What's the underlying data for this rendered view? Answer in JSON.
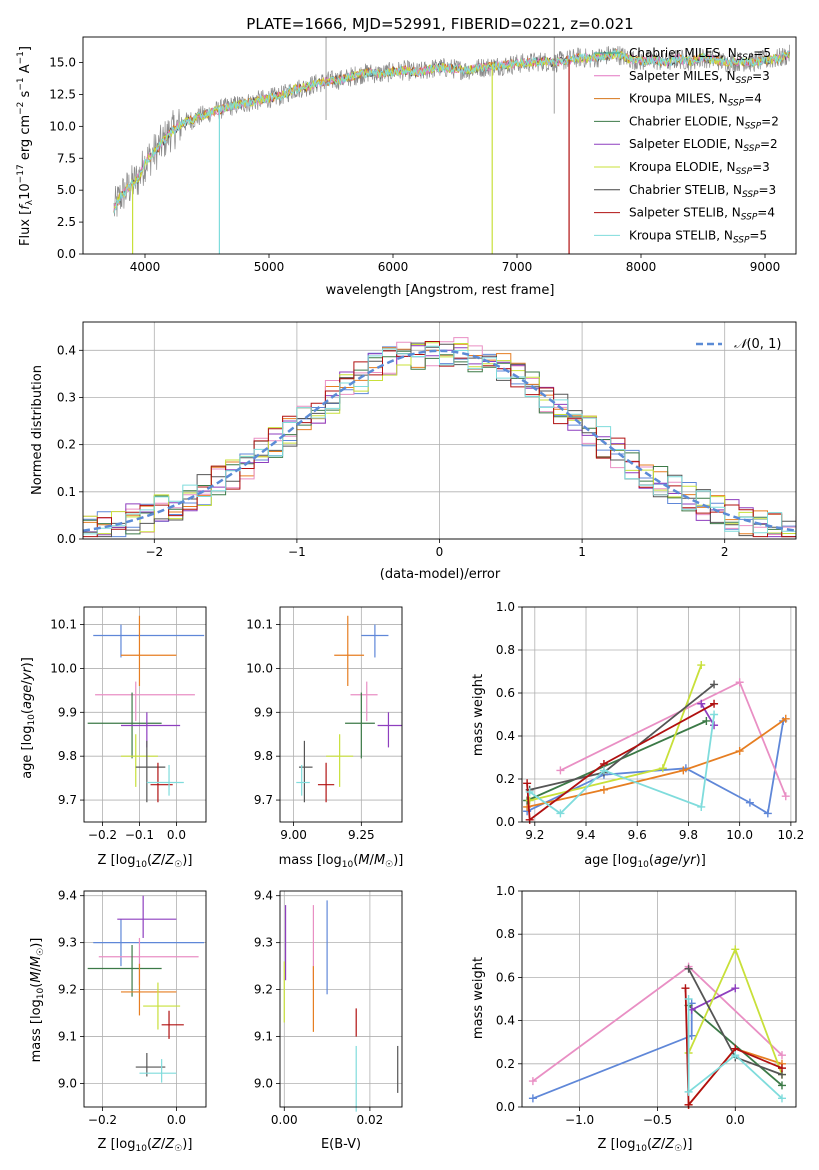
{
  "chart_data": [
    {
      "id": "spectrum",
      "type": "line",
      "title": "PLATE=1666, MJD=52991, FIBERID=0221, z=0.021",
      "xlabel": "wavelength [Angstrom, rest frame]",
      "ylabel": "Flux [fλ 10⁻¹⁷ erg cm⁻² s⁻¹ A⁻¹]",
      "xlim": [
        3500,
        9250
      ],
      "ylim": [
        0,
        17
      ],
      "xticks": [
        4000,
        5000,
        6000,
        7000,
        8000,
        9000
      ],
      "yticks": [
        0.0,
        2.5,
        5.0,
        7.5,
        10.0,
        12.5,
        15.0
      ],
      "grid": false,
      "legend_position": "top-right",
      "legend": [
        {
          "label": "Chabrier MILES, N",
          "sub": "SSP",
          "suffix": "=5",
          "color": "#2a9d8f"
        },
        {
          "label": "Salpeter MILES, N",
          "sub": "SSP",
          "suffix": "=3",
          "color": "#e377c2"
        },
        {
          "label": "Kroupa MILES, N",
          "sub": "SSP",
          "suffix": "=4",
          "color": "#d6741a"
        },
        {
          "label": "Chabrier ELODIE, N",
          "sub": "SSP",
          "suffix": "=2",
          "color": "#3c7a47"
        },
        {
          "label": "Salpeter ELODIE, N",
          "sub": "SSP",
          "suffix": "=2",
          "color": "#8e3fbf"
        },
        {
          "label": "Kroupa ELODIE, N",
          "sub": "SSP",
          "suffix": "=3",
          "color": "#c8e03a"
        },
        {
          "label": "Chabrier STELIB, N",
          "sub": "SSP",
          "suffix": "=3",
          "color": "#444444"
        },
        {
          "label": "Salpeter STELIB, N",
          "sub": "SSP",
          "suffix": "=4",
          "color": "#b01010"
        },
        {
          "label": "Kroupa STELIB, N",
          "sub": "SSP",
          "suffix": "=5",
          "color": "#7fdcdc"
        }
      ],
      "series": [
        {
          "x": [
            3750,
            3800,
            3850,
            3900,
            3950,
            4000,
            4100,
            4200,
            4300,
            4400,
            4500,
            4600,
            4700,
            4800,
            4900,
            5000,
            5100,
            5200,
            5300,
            5400,
            5500,
            5600,
            5700,
            5800,
            5900,
            6000,
            6100,
            6200,
            6300,
            6400,
            6500,
            6600,
            6700,
            6800,
            6900,
            7000,
            7100,
            7200,
            7300,
            7400,
            7500,
            7600,
            7700,
            7800,
            7900,
            8000,
            8100,
            8200,
            8300,
            8400,
            8500,
            8600,
            8700,
            8800,
            8900,
            9000,
            9100,
            9200
          ],
          "y": [
            3.5,
            4.5,
            5.0,
            5.5,
            6.0,
            7.2,
            8.2,
            9.5,
            10.2,
            10.6,
            11.0,
            11.3,
            11.6,
            11.8,
            12.0,
            12.2,
            12.4,
            12.9,
            13.1,
            13.4,
            13.6,
            13.7,
            14.0,
            14.2,
            14.1,
            14.3,
            14.4,
            14.2,
            14.5,
            14.6,
            14.5,
            14.4,
            14.6,
            14.7,
            14.8,
            14.9,
            15.0,
            15.1,
            15.0,
            15.2,
            15.4,
            15.3,
            15.5,
            15.7,
            15.3,
            15.1,
            15.2,
            15.0,
            15.3,
            15.1,
            15.4,
            15.2,
            15.0,
            15.1,
            15.0,
            15.2,
            15.3,
            15.6
          ]
        }
      ]
    },
    {
      "id": "residuals",
      "type": "histogram",
      "xlabel": "(data-model)/error",
      "ylabel": "Normed distribution",
      "xlim": [
        -2.5,
        2.5
      ],
      "ylim": [
        0,
        0.46
      ],
      "xticks": [
        -2,
        -1,
        0,
        1,
        2
      ],
      "yticks": [
        0.0,
        0.1,
        0.2,
        0.3,
        0.4
      ],
      "grid": true,
      "legend_position": "top-right",
      "legend_label": "N(0,1)",
      "reference_curve": "normal pdf, mean 0, sigma 1",
      "bin_width": 0.1
    },
    {
      "id": "age-vs-Z",
      "type": "errorbar",
      "xlabel": "Z [log10(Z/Z☉)]",
      "ylabel": "age [log10(age/yr)]",
      "xlim": [
        -0.25,
        0.08
      ],
      "ylim": [
        9.65,
        10.14
      ],
      "xticks": [
        -0.2,
        -0.1,
        0.0
      ],
      "yticks": [
        9.7,
        9.8,
        9.9,
        10.0,
        10.1
      ],
      "points": [
        {
          "x": -0.15,
          "xerr": [
            0.075,
            0.225
          ],
          "y": 10.075,
          "yerr": [
            0.05,
            0.025
          ],
          "color": "#5f87d8"
        },
        {
          "x": -0.1,
          "xerr": [
            0.05,
            0.1
          ],
          "y": 10.03,
          "yerr": [
            0.07,
            0.09
          ],
          "color": "#e67e22"
        },
        {
          "x": -0.11,
          "xerr": [
            0.11,
            0.16
          ],
          "y": 9.94,
          "yerr": [
            0.06,
            0.03
          ],
          "color": "#e98fc4"
        },
        {
          "x": -0.12,
          "xerr": [
            0.12,
            0.08
          ],
          "y": 9.875,
          "yerr": [
            0.08,
            0.07
          ],
          "color": "#3c7a47"
        },
        {
          "x": -0.08,
          "xerr": [
            0.07,
            0.09
          ],
          "y": 9.87,
          "yerr": [
            0.05,
            0.03
          ],
          "color": "#8e3fbf"
        },
        {
          "x": -0.11,
          "xerr": [
            0.04,
            0.06
          ],
          "y": 9.8,
          "yerr": [
            0.07,
            0.05
          ],
          "color": "#c8e03a"
        },
        {
          "x": -0.08,
          "xerr": [
            0.03,
            0.05
          ],
          "y": 9.775,
          "yerr": [
            0.08,
            0.06
          ],
          "color": "#555555"
        },
        {
          "x": -0.05,
          "xerr": [
            0.02,
            0.04
          ],
          "y": 9.735,
          "yerr": [
            0.04,
            0.05
          ],
          "color": "#b01010"
        },
        {
          "x": -0.02,
          "xerr": [
            0.06,
            0.04
          ],
          "y": 9.74,
          "yerr": [
            0.03,
            0.04
          ],
          "color": "#7fdcdc"
        }
      ]
    },
    {
      "id": "age-vs-mass",
      "type": "errorbar",
      "xlabel": "mass [log10(M/M☉)]",
      "ylabel": "",
      "xlim": [
        8.95,
        9.4
      ],
      "ylim": [
        9.65,
        10.14
      ],
      "xticks": [
        9.0,
        9.25
      ],
      "yticks": [
        9.7,
        9.8,
        9.9,
        10.0,
        10.1
      ],
      "points": [
        {
          "x": 9.3,
          "xerr": [
            0.05,
            0.05
          ],
          "y": 10.075,
          "yerr": [
            0.05,
            0.025
          ],
          "color": "#5f87d8"
        },
        {
          "x": 9.2,
          "xerr": [
            0.05,
            0.06
          ],
          "y": 10.03,
          "yerr": [
            0.07,
            0.09
          ],
          "color": "#e67e22"
        },
        {
          "x": 9.27,
          "xerr": [
            0.06,
            0.04
          ],
          "y": 9.94,
          "yerr": [
            0.06,
            0.03
          ],
          "color": "#e98fc4"
        },
        {
          "x": 9.25,
          "xerr": [
            0.06,
            0.05
          ],
          "y": 9.875,
          "yerr": [
            0.08,
            0.07
          ],
          "color": "#3c7a47"
        },
        {
          "x": 9.35,
          "xerr": [
            0.04,
            0.05
          ],
          "y": 9.87,
          "yerr": [
            0.05,
            0.03
          ],
          "color": "#8e3fbf"
        },
        {
          "x": 9.17,
          "xerr": [
            0.05,
            0.05
          ],
          "y": 9.8,
          "yerr": [
            0.07,
            0.05
          ],
          "color": "#c8e03a"
        },
        {
          "x": 9.04,
          "xerr": [
            0.02,
            0.03
          ],
          "y": 9.775,
          "yerr": [
            0.08,
            0.06
          ],
          "color": "#555555"
        },
        {
          "x": 9.12,
          "xerr": [
            0.03,
            0.03
          ],
          "y": 9.735,
          "yerr": [
            0.04,
            0.05
          ],
          "color": "#b01010"
        },
        {
          "x": 9.03,
          "xerr": [
            0.02,
            0.03
          ],
          "y": 9.74,
          "yerr": [
            0.03,
            0.04
          ],
          "color": "#7fdcdc"
        }
      ]
    },
    {
      "id": "weight-vs-age",
      "type": "line",
      "xlabel": "age [log10(age/yr)]",
      "ylabel": "mass weight",
      "xlim": [
        9.15,
        10.22
      ],
      "ylim": [
        0.0,
        1.0
      ],
      "xticks": [
        9.2,
        9.4,
        9.6,
        9.8,
        10.0,
        10.2
      ],
      "yticks": [
        0.0,
        0.2,
        0.4,
        0.6,
        0.8,
        1.0
      ],
      "grid": true,
      "series": [
        {
          "color": "#5f87d8",
          "x": [
            9.17,
            9.47,
            9.79,
            10.04,
            10.11,
            10.17
          ],
          "y": [
            0.05,
            0.22,
            0.25,
            0.09,
            0.04,
            0.47
          ]
        },
        {
          "color": "#e98fc4",
          "x": [
            9.3,
            10.0,
            10.18
          ],
          "y": [
            0.24,
            0.65,
            0.12
          ]
        },
        {
          "color": "#e67e22",
          "x": [
            9.17,
            9.47,
            9.78,
            10.0,
            10.18
          ],
          "y": [
            0.07,
            0.15,
            0.24,
            0.33,
            0.48
          ]
        },
        {
          "color": "#3c7a47",
          "x": [
            9.17,
            9.87
          ],
          "y": [
            0.1,
            0.47
          ]
        },
        {
          "color": "#8e3fbf",
          "x": [
            9.85,
            9.9
          ],
          "y": [
            0.55,
            0.45
          ]
        },
        {
          "color": "#c8e03a",
          "x": [
            9.18,
            9.7,
            9.85
          ],
          "y": [
            0.1,
            0.25,
            0.73
          ]
        },
        {
          "color": "#555555",
          "x": [
            9.18,
            9.47,
            9.9
          ],
          "y": [
            0.15,
            0.23,
            0.64
          ]
        },
        {
          "color": "#b01010",
          "x": [
            9.17,
            9.18,
            9.47,
            9.9
          ],
          "y": [
            0.18,
            0.01,
            0.27,
            0.55
          ]
        },
        {
          "color": "#7fdcdc",
          "x": [
            9.18,
            9.3,
            9.47,
            9.85,
            9.9
          ],
          "y": [
            0.14,
            0.04,
            0.24,
            0.07,
            0.5
          ]
        }
      ]
    },
    {
      "id": "mass-vs-Z",
      "type": "errorbar",
      "xlabel": "Z [log10(Z/Z☉)]",
      "ylabel": "mass [log10(M/M☉)]",
      "xlim": [
        -0.25,
        0.08
      ],
      "ylim": [
        8.95,
        9.41
      ],
      "xticks": [
        -0.2,
        0.0
      ],
      "yticks": [
        9.0,
        9.1,
        9.2,
        9.3,
        9.4
      ],
      "points": [
        {
          "x": -0.15,
          "xerr": [
            0.075,
            0.225
          ],
          "y": 9.3,
          "yerr": [
            0.05,
            0.05
          ],
          "color": "#5f87d8"
        },
        {
          "x": -0.1,
          "xerr": [
            0.11,
            0.16
          ],
          "y": 9.27,
          "yerr": [
            0.06,
            0.04
          ],
          "color": "#e98fc4"
        },
        {
          "x": -0.09,
          "xerr": [
            0.07,
            0.09
          ],
          "y": 9.35,
          "yerr": [
            0.04,
            0.05
          ],
          "color": "#8e3fbf"
        },
        {
          "x": -0.12,
          "xerr": [
            0.12,
            0.08
          ],
          "y": 9.245,
          "yerr": [
            0.06,
            0.05
          ],
          "color": "#3c7a47"
        },
        {
          "x": -0.1,
          "xerr": [
            0.05,
            0.1
          ],
          "y": 9.195,
          "yerr": [
            0.05,
            0.06
          ],
          "color": "#e67e22"
        },
        {
          "x": -0.05,
          "xerr": [
            0.04,
            0.06
          ],
          "y": 9.165,
          "yerr": [
            0.05,
            0.05
          ],
          "color": "#c8e03a"
        },
        {
          "x": -0.02,
          "xerr": [
            0.02,
            0.04
          ],
          "y": 9.125,
          "yerr": [
            0.03,
            0.03
          ],
          "color": "#b01010"
        },
        {
          "x": -0.08,
          "xerr": [
            0.03,
            0.05
          ],
          "y": 9.035,
          "yerr": [
            0.02,
            0.03
          ],
          "color": "#555555"
        },
        {
          "x": -0.04,
          "xerr": [
            0.06,
            0.04
          ],
          "y": 9.022,
          "yerr": [
            0.02,
            0.03
          ],
          "color": "#7fdcdc"
        }
      ]
    },
    {
      "id": "mass-vs-EBV",
      "type": "errorbar",
      "xlabel": "E(B-V)",
      "ylabel": "",
      "xlim": [
        -0.001,
        0.0275
      ],
      "ylim": [
        8.95,
        9.41
      ],
      "xticks": [
        0.0,
        0.02
      ],
      "yticks": [
        9.0,
        9.1,
        9.2,
        9.3,
        9.4
      ],
      "points": [
        {
          "x": 0.0003,
          "y": 9.3,
          "yerr": [
            0.08,
            0.08
          ],
          "color": "#8e3fbf"
        },
        {
          "x": 0.0,
          "y": 9.2,
          "yerr": [
            0.07,
            0.06
          ],
          "color": "#c8e03a"
        },
        {
          "x": 0.0068,
          "y": 9.3,
          "yerr": [
            0.08,
            0.08
          ],
          "color": "#e98fc4"
        },
        {
          "x": 0.0068,
          "y": 9.18,
          "yerr": [
            0.07,
            0.07
          ],
          "color": "#e67e22"
        },
        {
          "x": 0.01,
          "y": 9.29,
          "yerr": [
            0.1,
            0.1
          ],
          "color": "#5f87d8"
        },
        {
          "x": 0.0168,
          "y": 9.13,
          "yerr": [
            0.03,
            0.03
          ],
          "color": "#b01010"
        },
        {
          "x": 0.0168,
          "y": 9.01,
          "yerr": [
            0.07,
            0.07
          ],
          "color": "#7fdcdc"
        },
        {
          "x": 0.0265,
          "y": 9.01,
          "yerr": [
            0.03,
            0.07
          ],
          "color": "#555555"
        }
      ]
    },
    {
      "id": "weight-vs-Z",
      "type": "line",
      "xlabel": "Z [log10(Z/Z☉)]",
      "ylabel": "mass weight",
      "xlim": [
        -1.37,
        0.39
      ],
      "ylim": [
        0.0,
        1.0
      ],
      "xticks": [
        -1.0,
        -0.5,
        0.0
      ],
      "yticks": [
        0.0,
        0.2,
        0.4,
        0.6,
        0.8,
        1.0
      ],
      "grid": true,
      "series": [
        {
          "color": "#5f87d8",
          "x": [
            -1.3,
            -0.28,
            -0.28
          ],
          "y": [
            0.04,
            0.33,
            0.48
          ]
        },
        {
          "color": "#e98fc4",
          "x": [
            -1.3,
            -0.3,
            0.3
          ],
          "y": [
            0.12,
            0.65,
            0.24
          ]
        },
        {
          "color": "#e67e22",
          "x": [
            -0.3,
            0.0,
            0.3
          ],
          "y": [
            0.01,
            0.27,
            0.2
          ]
        },
        {
          "color": "#3c7a47",
          "x": [
            -0.3,
            0.3
          ],
          "y": [
            0.47,
            0.1
          ]
        },
        {
          "color": "#8e3fbf",
          "x": [
            -0.28,
            0.0
          ],
          "y": [
            0.45,
            0.55
          ]
        },
        {
          "color": "#c8e03a",
          "x": [
            -0.3,
            0.0,
            0.3
          ],
          "y": [
            0.25,
            0.73,
            0.15
          ]
        },
        {
          "color": "#555555",
          "x": [
            -0.3,
            0.0,
            0.3
          ],
          "y": [
            0.64,
            0.23,
            0.15
          ]
        },
        {
          "color": "#b01010",
          "x": [
            -0.32,
            -0.3,
            0.0,
            0.3
          ],
          "y": [
            0.55,
            0.01,
            0.27,
            0.18
          ]
        },
        {
          "color": "#7fdcdc",
          "x": [
            -0.3,
            -0.3,
            0.0,
            0.3
          ],
          "y": [
            0.5,
            0.07,
            0.24,
            0.04
          ]
        }
      ]
    }
  ]
}
